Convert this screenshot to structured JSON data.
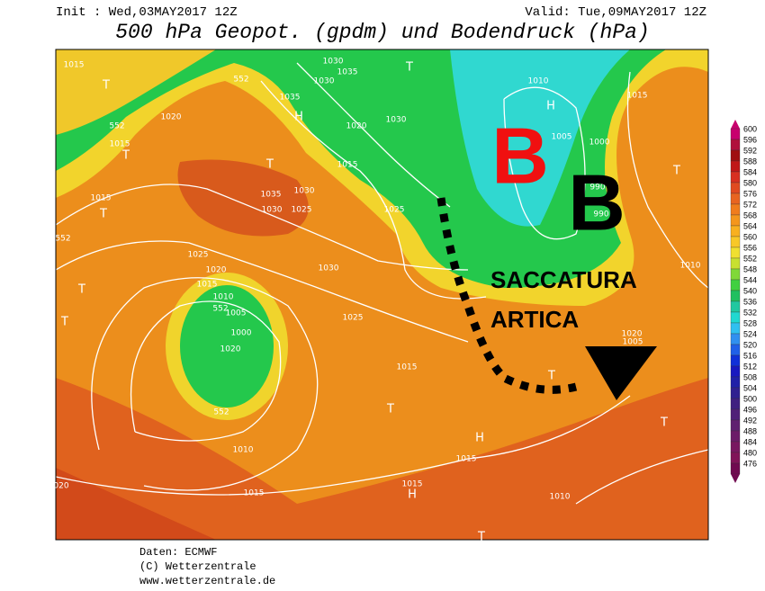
{
  "header": {
    "init": "Init : Wed,03MAY2017 12Z",
    "valid": "Valid: Tue,09MAY2017 12Z",
    "title": "500 hPa Geopot. (gpdm) und Bodendruck (hPa)"
  },
  "annotations": {
    "low_red": "B",
    "low_black": "B",
    "line1": "SACCATURA",
    "line2": "ARTICA"
  },
  "map_labels": [
    "1015",
    "T",
    "552",
    "1030",
    "1035",
    "1030",
    "T",
    "1035",
    "H",
    "1020",
    "552",
    "1015",
    "T",
    "1030",
    "1020",
    "1010",
    "H",
    "1015",
    "1005",
    "1000",
    "1015",
    "T",
    "1035",
    "1030",
    "1030",
    "1025",
    "1025",
    "1015",
    "T",
    "552",
    "T",
    "990",
    "990",
    "1010",
    "1025",
    "1020",
    "1030",
    "1015",
    "T",
    "1010",
    "1005",
    "552",
    "1025",
    "1000",
    "T",
    "1015",
    "1020",
    "1005",
    "T",
    "1020",
    "T",
    "552",
    "H",
    "1015",
    "1010",
    "T",
    "1015",
    "H",
    "1015",
    "1010",
    "020",
    "T"
  ],
  "legend": {
    "levels": [
      600,
      596,
      592,
      588,
      584,
      580,
      576,
      572,
      568,
      564,
      560,
      556,
      552,
      548,
      544,
      540,
      536,
      532,
      528,
      524,
      520,
      516,
      512,
      508,
      504,
      500,
      496,
      492,
      488,
      484,
      480,
      476
    ],
    "colors": [
      "#c8006e",
      "#b0103c",
      "#a01010",
      "#c01818",
      "#d83020",
      "#e04a20",
      "#e86420",
      "#f07c1c",
      "#f4961c",
      "#f8b020",
      "#f8c828",
      "#f0e030",
      "#c8e030",
      "#80d838",
      "#40d040",
      "#20c060",
      "#20c8a0",
      "#20d8d0",
      "#30c0f0",
      "#3090f0",
      "#2060e8",
      "#1030d8",
      "#1818c0",
      "#2020a8",
      "#302090",
      "#402080",
      "#502078",
      "#602070",
      "#6c1c68",
      "#781860",
      "#801458",
      "#700a50"
    ]
  },
  "footer": [
    "Daten: ECMWF",
    "(C) Wetterzentrale",
    "www.wetterzentrale.de"
  ]
}
